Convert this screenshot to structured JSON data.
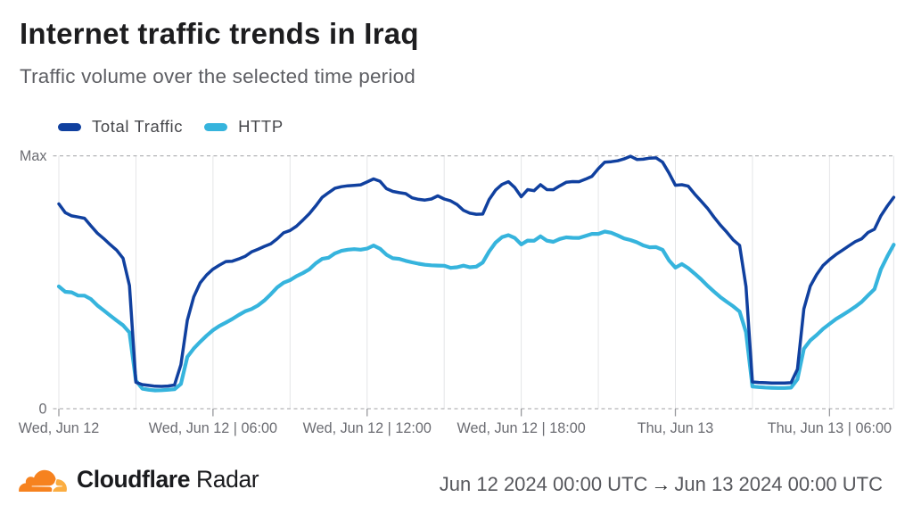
{
  "header": {
    "title": "Internet traffic trends in Iraq",
    "subtitle": "Traffic volume over the selected time period"
  },
  "legend": {
    "items": [
      {
        "label": "Total Traffic",
        "color": "#10409f"
      },
      {
        "label": "HTTP",
        "color": "#36b4dd"
      }
    ]
  },
  "footer": {
    "brand": {
      "name": "Cloudflare",
      "product": "Radar",
      "logo_colors": {
        "cloud": "#F6821F",
        "sun": "#FBAD41"
      }
    },
    "date_range": {
      "from": "Jun 12 2024 00:00 UTC",
      "arrow": "→",
      "to": "Jun 13 2024 00:00 UTC"
    }
  },
  "chart_data": {
    "type": "line",
    "title": "Internet traffic trends in Iraq",
    "xlabel": "",
    "ylabel": "",
    "x_start_hour": 0,
    "x_step_hours": 0.25,
    "x_end_hour": 32.5,
    "x_tick_hours": [
      0,
      6,
      12,
      18,
      24,
      30
    ],
    "x_tick_labels": [
      "Wed, Jun 12",
      "Wed, Jun 12 | 06:00",
      "Wed, Jun 12 | 12:00",
      "Wed, Jun 12 | 18:00",
      "Thu, Jun 13",
      "Thu, Jun 13 | 06:00"
    ],
    "x_gridline_interval_hours": 3,
    "y_axis_labels": {
      "max": "Max",
      "zero": "0"
    },
    "ylim": [
      0,
      1
    ],
    "grid": {
      "vertical_color": "#e4e5e7",
      "dashed_color": "#b4b5b7",
      "tick_color": "#97989c"
    },
    "legend_position": "top-left",
    "series": [
      {
        "name": "Total Traffic",
        "color": "#10409f",
        "stroke_width": 3.5,
        "values": [
          0.8098,
          0.7752,
          0.7625,
          0.7581,
          0.753,
          0.7229,
          0.6941,
          0.6725,
          0.6488,
          0.6271,
          0.5949,
          0.487,
          0.1046,
          0.0954,
          0.0921,
          0.089,
          0.0882,
          0.0898,
          0.0936,
          0.1742,
          0.3496,
          0.4421,
          0.4974,
          0.5286,
          0.552,
          0.5678,
          0.5818,
          0.5831,
          0.5921,
          0.6025,
          0.6198,
          0.6303,
          0.6419,
          0.6521,
          0.672,
          0.6954,
          0.7047,
          0.7216,
          0.7456,
          0.7711,
          0.8017,
          0.8355,
          0.8544,
          0.872,
          0.878,
          0.8813,
          0.8833,
          0.8852,
          0.8967,
          0.9087,
          0.8993,
          0.8703,
          0.8591,
          0.8542,
          0.8503,
          0.8339,
          0.8277,
          0.825,
          0.8291,
          0.8414,
          0.8292,
          0.8217,
          0.8072,
          0.7845,
          0.7731,
          0.769,
          0.7696,
          0.8271,
          0.8642,
          0.8866,
          0.8975,
          0.8745,
          0.8379,
          0.8662,
          0.8622,
          0.8857,
          0.8661,
          0.866,
          0.8812,
          0.8951,
          0.8982,
          0.8977,
          0.9075,
          0.919,
          0.9491,
          0.9749,
          0.9767,
          0.9803,
          0.9876,
          0.9982,
          0.9856,
          0.9867,
          0.991,
          0.9919,
          0.9751,
          0.9324,
          0.8834,
          0.8857,
          0.8801,
          0.8491,
          0.821,
          0.7925,
          0.7578,
          0.7262,
          0.6982,
          0.6677,
          0.6461,
          0.4826,
          0.1057,
          0.1039,
          0.1026,
          0.1016,
          0.1011,
          0.1013,
          0.1027,
          0.1564,
          0.3949,
          0.4849,
          0.5307,
          0.5667,
          0.5895,
          0.6096,
          0.6268,
          0.6436,
          0.6604,
          0.6719,
          0.6969,
          0.7099,
          0.7628,
          0.8015,
          0.8359
        ]
      },
      {
        "name": "HTTP",
        "color": "#36b4dd",
        "stroke_width": 4.2,
        "values": [
          0.4834,
          0.4622,
          0.4601,
          0.4473,
          0.4471,
          0.4334,
          0.4082,
          0.3886,
          0.3683,
          0.3486,
          0.3299,
          0.3013,
          0.1114,
          0.0793,
          0.0748,
          0.0724,
          0.073,
          0.0749,
          0.0768,
          0.0977,
          0.2048,
          0.2377,
          0.2642,
          0.2886,
          0.3105,
          0.3276,
          0.3405,
          0.3546,
          0.3705,
          0.385,
          0.3941,
          0.4083,
          0.428,
          0.4526,
          0.4796,
          0.4982,
          0.5085,
          0.5241,
          0.5362,
          0.5512,
          0.5749,
          0.5925,
          0.5972,
          0.6142,
          0.6241,
          0.6287,
          0.6309,
          0.6288,
          0.6332,
          0.6453,
          0.6325,
          0.6089,
          0.595,
          0.5925,
          0.5848,
          0.5786,
          0.5735,
          0.569,
          0.567,
          0.5661,
          0.5654,
          0.557,
          0.5593,
          0.5658,
          0.5593,
          0.5618,
          0.578,
          0.6219,
          0.6566,
          0.6781,
          0.6864,
          0.6751,
          0.6497,
          0.6649,
          0.6642,
          0.6817,
          0.6644,
          0.66,
          0.671,
          0.6775,
          0.6756,
          0.6753,
          0.683,
          0.6912,
          0.6913,
          0.7004,
          0.6959,
          0.6854,
          0.6731,
          0.667,
          0.6582,
          0.6457,
          0.6382,
          0.639,
          0.6286,
          0.5869,
          0.5579,
          0.5719,
          0.5556,
          0.5341,
          0.5116,
          0.4862,
          0.4632,
          0.4416,
          0.4229,
          0.4052,
          0.3842,
          0.3029,
          0.088,
          0.0853,
          0.0836,
          0.0824,
          0.0819,
          0.0819,
          0.0831,
          0.1166,
          0.2366,
          0.2701,
          0.2915,
          0.3158,
          0.3351,
          0.3541,
          0.3698,
          0.3859,
          0.4031,
          0.4223,
          0.4482,
          0.4728,
          0.5511,
          0.6023,
          0.6486
        ]
      }
    ]
  }
}
